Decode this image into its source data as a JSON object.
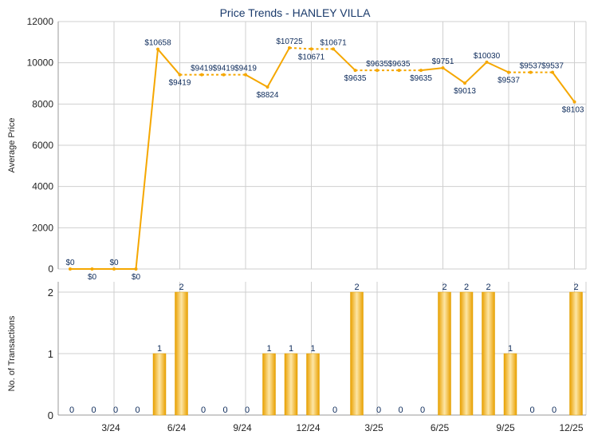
{
  "chart_data": {
    "type": "line+bar",
    "title": "Price Trends - HANLEY VILLA",
    "colors": {
      "line": "#f5a700",
      "bar": "#f5a700",
      "bar_light": "#fde6a6",
      "grid": "#cfcfcf",
      "text": "#1a3a6b",
      "label": "#1a3a6b"
    },
    "x_ticks": [
      {
        "index": 2,
        "label": "3/24"
      },
      {
        "index": 5,
        "label": "6/24"
      },
      {
        "index": 8,
        "label": "9/24"
      },
      {
        "index": 11,
        "label": "12/24"
      },
      {
        "index": 14,
        "label": "3/25"
      },
      {
        "index": 17,
        "label": "6/25"
      },
      {
        "index": 20,
        "label": "9/25"
      },
      {
        "index": 23,
        "label": "12/25"
      }
    ],
    "price_panel": {
      "ylabel": "Average Price",
      "ylim": [
        0,
        12000
      ],
      "yticks": [
        0,
        2000,
        4000,
        6000,
        8000,
        10000,
        12000
      ],
      "values": [
        0,
        0,
        0,
        0,
        10658,
        9419,
        9419,
        9419,
        9419,
        8824,
        10725,
        10671,
        10671,
        9635,
        9635,
        9635,
        9635,
        9751,
        9013,
        10030,
        9537,
        9537,
        9537,
        8103
      ],
      "labels": [
        "$0",
        "$0",
        "$0",
        "$0",
        "$10658",
        "$9419",
        "$9419",
        "$9419",
        "$9419",
        "$8824",
        "$10725",
        "$10671",
        "$10671",
        "$9635",
        "$9635",
        "$9635",
        "$9635",
        "$9751",
        "$9013",
        "$10030",
        "$9537",
        "$9537",
        "$9537",
        "$8103"
      ],
      "interpolated": [
        false,
        false,
        false,
        false,
        false,
        false,
        true,
        true,
        false,
        false,
        false,
        true,
        false,
        false,
        true,
        true,
        false,
        false,
        false,
        false,
        false,
        true,
        false,
        false
      ]
    },
    "transactions_panel": {
      "ylabel": "No. of Transactions",
      "ylim": [
        0,
        2
      ],
      "yticks": [
        0,
        1,
        2
      ],
      "values": [
        0,
        0,
        0,
        0,
        1,
        2,
        0,
        0,
        0,
        1,
        1,
        1,
        0,
        2,
        0,
        0,
        0,
        2,
        2,
        2,
        1,
        0,
        0,
        2
      ]
    }
  }
}
